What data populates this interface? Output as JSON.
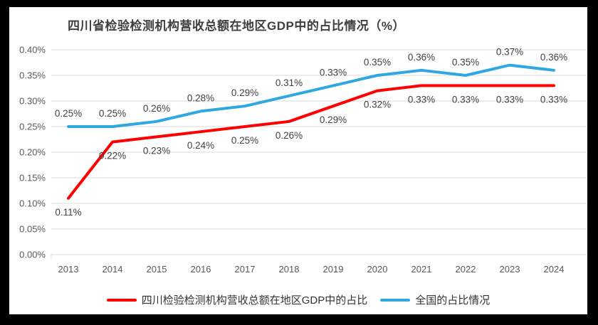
{
  "frame": {
    "background": "#000000",
    "canvas_background": "#ffffff"
  },
  "chart_data": {
    "type": "line",
    "title": "四川省检验检测机构营收总额在地区GDP中的占比情况（%）",
    "categories": [
      "2013",
      "2014",
      "2015",
      "2016",
      "2017",
      "2018",
      "2019",
      "2020",
      "2021",
      "2022",
      "2023",
      "2024"
    ],
    "series": [
      {
        "name": "四川检验检测机构营收总额在地区GDP中的占比",
        "color": "#fe0000",
        "values": [
          0.11,
          0.22,
          0.23,
          0.24,
          0.25,
          0.26,
          0.29,
          0.32,
          0.33,
          0.33,
          0.33,
          0.33
        ],
        "labels": [
          "0.11%",
          "0.22%",
          "0.23%",
          "0.24%",
          "0.25%",
          "0.26%",
          "0.29%",
          "0.32%",
          "0.33%",
          "0.33%",
          "0.33%",
          "0.33%"
        ],
        "label_position": "below"
      },
      {
        "name": "全国的占比情况",
        "color": "#2fa8e1",
        "values": [
          0.25,
          0.25,
          0.26,
          0.28,
          0.29,
          0.31,
          0.33,
          0.35,
          0.36,
          0.35,
          0.37,
          0.36
        ],
        "labels": [
          "0.25%",
          "0.25%",
          "0.26%",
          "0.28%",
          "0.29%",
          "0.31%",
          "0.33%",
          "0.35%",
          "0.36%",
          "0.35%",
          "0.37%",
          "0.36%"
        ],
        "label_position": "above"
      }
    ],
    "xlabel": "",
    "ylabel": "",
    "ylim": [
      0,
      0.4
    ],
    "yticks": [
      {
        "value": 0.4,
        "label": "0.40%"
      },
      {
        "value": 0.35,
        "label": "0.35%"
      },
      {
        "value": 0.3,
        "label": "0.30%"
      },
      {
        "value": 0.25,
        "label": "0.25%"
      },
      {
        "value": 0.2,
        "label": "0.20%"
      },
      {
        "value": 0.15,
        "label": "0.15%"
      },
      {
        "value": 0.1,
        "label": "0.10%"
      },
      {
        "value": 0.05,
        "label": "0.05%"
      },
      {
        "value": 0.0,
        "label": "0.00%"
      }
    ],
    "grid": "horizontal",
    "legend_position": "bottom",
    "colors": {
      "gridline": "#d9d9d9",
      "axis_text": "#595959",
      "data_label_text": "#404040",
      "title_text": "#3f3f3f"
    }
  }
}
